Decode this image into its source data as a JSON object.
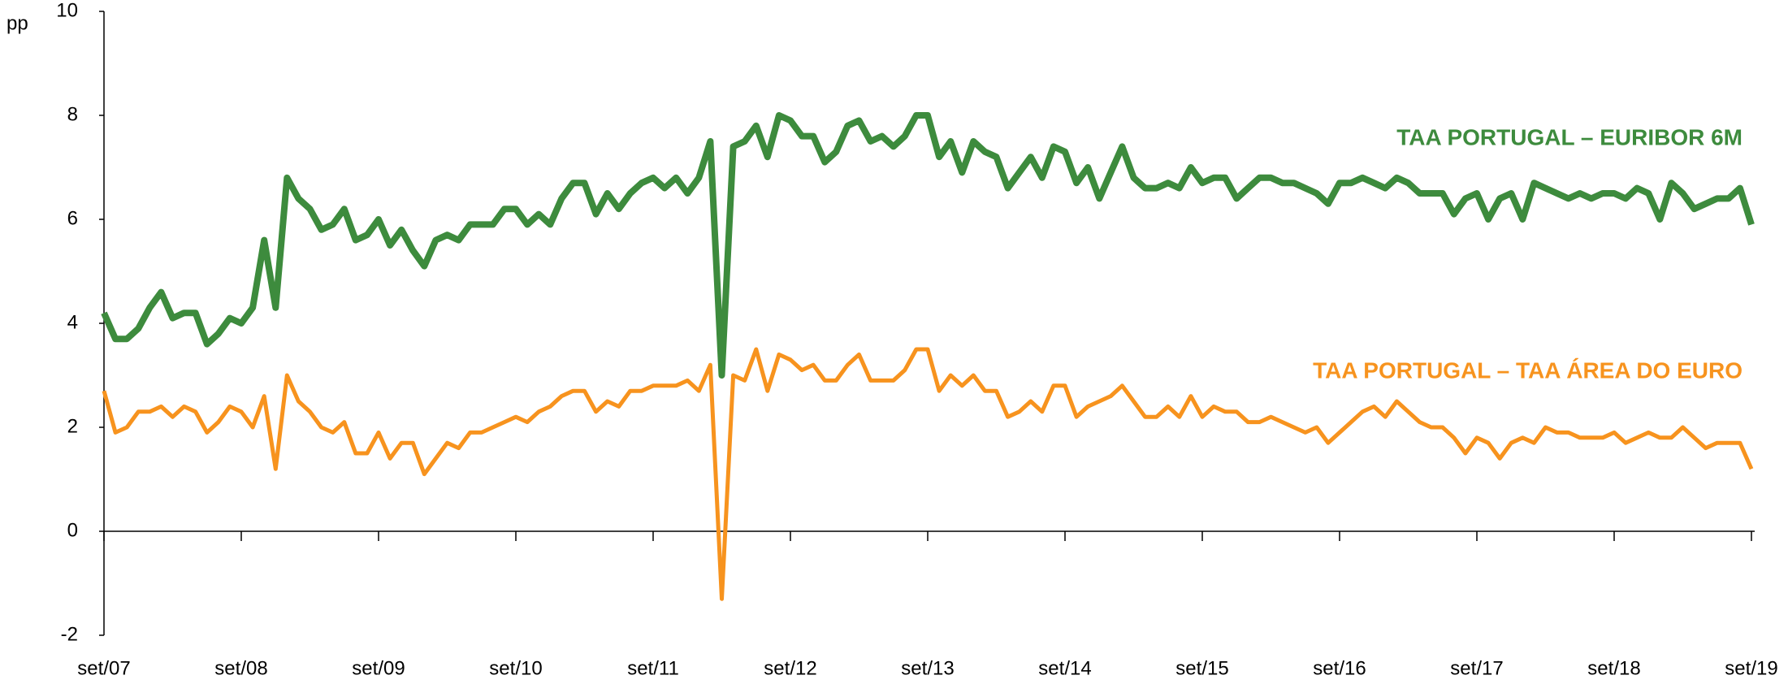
{
  "chart_data": {
    "type": "line",
    "y_label": "pp",
    "categories": [
      "set/07",
      null,
      null,
      null,
      null,
      null,
      null,
      null,
      null,
      null,
      null,
      null,
      "set/08",
      null,
      null,
      null,
      null,
      null,
      null,
      null,
      null,
      null,
      null,
      null,
      "set/09",
      null,
      null,
      null,
      null,
      null,
      null,
      null,
      null,
      null,
      null,
      null,
      "set/10",
      null,
      null,
      null,
      null,
      null,
      null,
      null,
      null,
      null,
      null,
      null,
      "set/11",
      null,
      null,
      null,
      null,
      null,
      null,
      null,
      null,
      null,
      null,
      null,
      "set/12",
      null,
      null,
      null,
      null,
      null,
      null,
      null,
      null,
      null,
      null,
      null,
      "set/13",
      null,
      null,
      null,
      null,
      null,
      null,
      null,
      null,
      null,
      null,
      null,
      "set/14",
      null,
      null,
      null,
      null,
      null,
      null,
      null,
      null,
      null,
      null,
      null,
      "set/15",
      null,
      null,
      null,
      null,
      null,
      null,
      null,
      null,
      null,
      null,
      null,
      "set/16",
      null,
      null,
      null,
      null,
      null,
      null,
      null,
      null,
      null,
      null,
      null,
      "set/17",
      null,
      null,
      null,
      null,
      null,
      null,
      null,
      null,
      null,
      null,
      null,
      "set/18",
      null,
      null,
      null,
      null,
      null,
      null,
      null,
      null,
      null,
      null,
      null,
      "set/19"
    ],
    "series": [
      {
        "name": "TAA PORTUGAL – EURIBOR 6M",
        "color": "#3d8b3d",
        "values": [
          4.2,
          3.7,
          3.7,
          3.9,
          4.3,
          4.6,
          4.1,
          4.2,
          4.2,
          3.6,
          3.8,
          4.1,
          4.0,
          4.3,
          5.6,
          4.3,
          6.8,
          6.4,
          6.2,
          5.8,
          5.9,
          6.2,
          5.6,
          5.7,
          6.0,
          5.5,
          5.8,
          5.4,
          5.1,
          5.6,
          5.7,
          5.6,
          5.9,
          5.9,
          5.9,
          6.2,
          6.2,
          5.9,
          6.1,
          5.9,
          6.4,
          6.7,
          6.7,
          6.1,
          6.5,
          6.2,
          6.5,
          6.7,
          6.8,
          6.6,
          6.8,
          6.5,
          6.8,
          7.5,
          3.0,
          7.4,
          7.5,
          7.8,
          7.2,
          8.0,
          7.9,
          7.6,
          7.6,
          7.1,
          7.3,
          7.8,
          7.9,
          7.5,
          7.6,
          7.4,
          7.6,
          8.0,
          8.0,
          7.2,
          7.5,
          6.9,
          7.5,
          7.3,
          7.2,
          6.6,
          6.9,
          7.2,
          6.8,
          7.4,
          7.3,
          6.7,
          7.0,
          6.4,
          6.9,
          7.4,
          6.8,
          6.6,
          6.6,
          6.7,
          6.6,
          7.0,
          6.7,
          6.8,
          6.8,
          6.4,
          6.6,
          6.8,
          6.8,
          6.7,
          6.7,
          6.6,
          6.5,
          6.3,
          6.7,
          6.7,
          6.8,
          6.7,
          6.6,
          6.8,
          6.7,
          6.5,
          6.5,
          6.5,
          6.1,
          6.4,
          6.5,
          6.0,
          6.4,
          6.5,
          6.0,
          6.7,
          6.6,
          6.5,
          6.4,
          6.5,
          6.4,
          6.5,
          6.5,
          6.4,
          6.6,
          6.5,
          6.0,
          6.7,
          6.5,
          6.2,
          6.3,
          6.4,
          6.4,
          6.6,
          5.9
        ]
      },
      {
        "name": "TAA PORTUGAL – TAA ÁREA DO EURO",
        "color": "#f7931e",
        "values": [
          2.7,
          1.9,
          2.0,
          2.3,
          2.3,
          2.4,
          2.2,
          2.4,
          2.3,
          1.9,
          2.1,
          2.4,
          2.3,
          2.0,
          2.6,
          1.2,
          3.0,
          2.5,
          2.3,
          2.0,
          1.9,
          2.1,
          1.5,
          1.5,
          1.9,
          1.4,
          1.7,
          1.7,
          1.1,
          1.4,
          1.7,
          1.6,
          1.9,
          1.9,
          2.0,
          2.1,
          2.2,
          2.1,
          2.3,
          2.4,
          2.6,
          2.7,
          2.7,
          2.3,
          2.5,
          2.4,
          2.7,
          2.7,
          2.8,
          2.8,
          2.8,
          2.9,
          2.7,
          3.2,
          -1.3,
          3.0,
          2.9,
          3.5,
          2.7,
          3.4,
          3.3,
          3.1,
          3.2,
          2.9,
          2.9,
          3.2,
          3.4,
          2.9,
          2.9,
          2.9,
          3.1,
          3.5,
          3.5,
          2.7,
          3.0,
          2.8,
          3.0,
          2.7,
          2.7,
          2.2,
          2.3,
          2.5,
          2.3,
          2.8,
          2.8,
          2.2,
          2.4,
          2.5,
          2.6,
          2.8,
          2.5,
          2.2,
          2.2,
          2.4,
          2.2,
          2.6,
          2.2,
          2.4,
          2.3,
          2.3,
          2.1,
          2.1,
          2.2,
          2.1,
          2.0,
          1.9,
          2.0,
          1.7,
          1.9,
          2.1,
          2.3,
          2.4,
          2.2,
          2.5,
          2.3,
          2.1,
          2.0,
          2.0,
          1.8,
          1.5,
          1.8,
          1.7,
          1.4,
          1.7,
          1.8,
          1.7,
          2.0,
          1.9,
          1.9,
          1.8,
          1.8,
          1.8,
          1.9,
          1.7,
          1.8,
          1.9,
          1.8,
          1.8,
          2.0,
          1.8,
          1.6,
          1.7,
          1.7,
          1.7,
          1.2
        ]
      }
    ],
    "ylim": [
      -2,
      10
    ],
    "yticks": [
      -2,
      0,
      2,
      4,
      6,
      8,
      10
    ]
  }
}
